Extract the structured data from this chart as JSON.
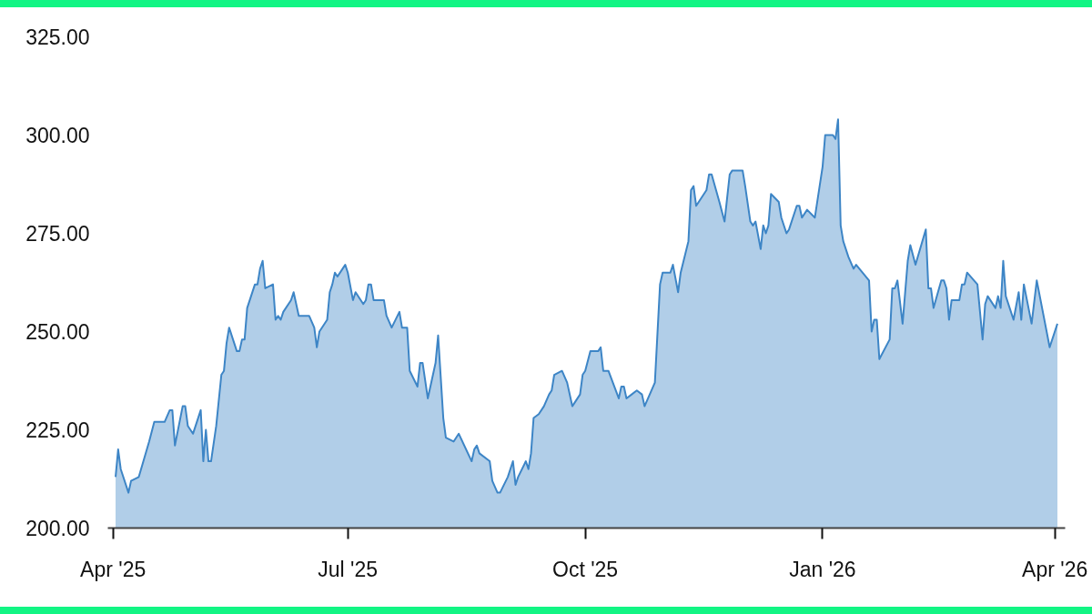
{
  "chart_data": {
    "type": "area",
    "x": [
      "2025-04-02",
      "2025-04-03",
      "2025-04-04",
      "2025-04-07",
      "2025-04-08",
      "2025-04-11",
      "2025-04-15",
      "2025-04-17",
      "2025-04-21",
      "2025-04-23",
      "2025-04-24",
      "2025-04-25",
      "2025-04-28",
      "2025-04-29",
      "2025-04-30",
      "2025-05-02",
      "2025-05-05",
      "2025-05-06",
      "2025-05-07",
      "2025-05-08",
      "2025-05-09",
      "2025-05-11",
      "2025-05-13",
      "2025-05-14",
      "2025-05-15",
      "2025-05-16",
      "2025-05-19",
      "2025-05-20",
      "2025-05-21",
      "2025-05-22",
      "2025-05-23",
      "2025-05-26",
      "2025-05-27",
      "2025-05-28",
      "2025-05-29",
      "2025-05-30",
      "2025-06-02",
      "2025-06-03",
      "2025-06-04",
      "2025-06-05",
      "2025-06-06",
      "2025-06-09",
      "2025-06-10",
      "2025-06-12",
      "2025-06-16",
      "2025-06-18",
      "2025-06-19",
      "2025-06-20",
      "2025-06-23",
      "2025-06-24",
      "2025-06-25",
      "2025-06-26",
      "2025-06-27",
      "2025-06-29",
      "2025-06-30",
      "2025-07-01",
      "2025-07-03",
      "2025-07-04",
      "2025-07-07",
      "2025-07-08",
      "2025-07-09",
      "2025-07-10",
      "2025-07-11",
      "2025-07-15",
      "2025-07-16",
      "2025-07-18",
      "2025-07-21",
      "2025-07-22",
      "2025-07-24",
      "2025-07-25",
      "2025-07-28",
      "2025-07-29",
      "2025-07-30",
      "2025-08-01",
      "2025-08-04",
      "2025-08-05",
      "2025-08-07",
      "2025-08-08",
      "2025-08-11",
      "2025-08-13",
      "2025-08-18",
      "2025-08-19",
      "2025-08-20",
      "2025-08-21",
      "2025-08-25",
      "2025-08-26",
      "2025-08-28",
      "2025-08-29",
      "2025-09-01",
      "2025-09-03",
      "2025-09-04",
      "2025-09-05",
      "2025-09-08",
      "2025-09-09",
      "2025-09-10",
      "2025-09-11",
      "2025-09-13",
      "2025-09-15",
      "2025-09-17",
      "2025-09-18",
      "2025-09-19",
      "2025-09-22",
      "2025-09-24",
      "2025-09-26",
      "2025-09-29",
      "2025-09-30",
      "2025-10-01",
      "2025-10-03",
      "2025-10-06",
      "2025-10-07",
      "2025-10-08",
      "2025-10-10",
      "2025-10-14",
      "2025-10-15",
      "2025-10-16",
      "2025-10-17",
      "2025-10-19",
      "2025-10-21",
      "2025-10-23",
      "2025-10-24",
      "2025-10-28",
      "2025-10-30",
      "2025-10-31",
      "2025-11-03",
      "2025-11-04",
      "2025-11-06",
      "2025-11-07",
      "2025-11-10",
      "2025-11-11",
      "2025-11-12",
      "2025-11-13",
      "2025-11-14",
      "2025-11-17",
      "2025-11-18",
      "2025-11-19",
      "2025-11-22",
      "2025-11-24",
      "2025-11-26",
      "2025-11-27",
      "2025-11-29",
      "2025-12-01",
      "2025-12-02",
      "2025-12-04",
      "2025-12-05",
      "2025-12-06",
      "2025-12-08",
      "2025-12-09",
      "2025-12-10",
      "2025-12-11",
      "2025-12-12",
      "2025-12-15",
      "2025-12-16",
      "2025-12-18",
      "2025-12-19",
      "2025-12-22",
      "2025-12-23",
      "2025-12-24",
      "2025-12-26",
      "2025-12-29",
      "2026-01-01",
      "2026-01-02",
      "2026-01-05",
      "2026-01-06",
      "2026-01-07",
      "2026-01-08",
      "2026-01-09",
      "2026-01-11",
      "2026-01-13",
      "2026-01-14",
      "2026-01-19",
      "2026-01-20",
      "2026-01-21",
      "2026-01-22",
      "2026-01-23",
      "2026-01-27",
      "2026-01-28",
      "2026-01-29",
      "2026-01-30",
      "2026-02-01",
      "2026-02-03",
      "2026-02-04",
      "2026-02-06",
      "2026-02-10",
      "2026-02-11",
      "2026-02-12",
      "2026-02-13",
      "2026-02-16",
      "2026-02-17",
      "2026-02-18",
      "2026-02-19",
      "2026-02-20",
      "2026-02-23",
      "2026-02-24",
      "2026-02-25",
      "2026-02-26",
      "2026-03-02",
      "2026-03-04",
      "2026-03-05",
      "2026-03-06",
      "2026-03-09",
      "2026-03-10",
      "2026-03-11",
      "2026-03-12",
      "2026-03-13",
      "2026-03-16",
      "2026-03-18",
      "2026-03-19",
      "2026-03-20",
      "2026-03-23",
      "2026-03-25",
      "2026-03-30",
      "2026-04-02"
    ],
    "series": [
      {
        "color": "#3d85c6",
        "values": [
          213,
          220,
          215,
          209,
          212,
          213,
          222,
          227,
          227,
          230,
          230,
          221,
          231,
          231,
          226,
          224,
          230,
          217,
          225,
          217,
          217,
          226,
          239,
          240,
          247,
          251,
          245,
          245,
          248,
          248,
          256,
          262,
          262,
          266,
          268,
          261,
          262,
          253,
          254,
          253,
          255,
          258,
          260,
          254,
          254,
          251,
          246,
          250,
          253,
          260,
          262,
          265,
          264,
          266,
          267,
          265,
          258,
          260,
          257,
          258,
          262,
          262,
          258,
          258,
          254,
          251,
          255,
          251,
          251,
          240,
          236,
          242,
          242,
          233,
          242,
          249,
          228,
          223,
          222,
          224,
          217,
          220,
          221,
          219,
          217,
          212,
          209,
          209,
          213,
          217,
          211,
          213,
          217,
          215,
          219,
          228,
          229,
          231,
          234,
          235,
          239,
          240,
          237,
          231,
          234,
          239,
          240,
          245,
          245,
          246,
          240,
          240,
          233,
          236,
          236,
          233,
          234,
          235,
          234,
          231,
          237,
          262,
          265,
          265,
          267,
          260,
          265,
          273,
          286,
          287,
          282,
          283,
          286,
          290,
          290,
          283,
          278,
          290,
          291,
          291,
          291,
          287,
          278,
          277,
          278,
          271,
          277,
          275,
          277,
          285,
          283,
          279,
          275,
          276,
          282,
          282,
          279,
          281,
          279,
          292,
          300,
          300,
          299,
          304,
          277,
          273,
          269,
          266,
          267,
          263,
          250,
          253,
          253,
          243,
          248,
          261,
          261,
          263,
          252,
          268,
          272,
          267,
          276,
          261,
          261,
          256,
          263,
          263,
          261,
          253,
          258,
          258,
          262,
          262,
          265,
          262,
          248,
          257,
          259,
          256,
          259,
          256,
          268,
          259,
          253,
          260,
          253,
          262,
          252,
          263,
          246,
          252
        ]
      }
    ],
    "xlim": [
      "2025-03-30",
      "2026-04-05"
    ],
    "xticks": [
      {
        "value": "2025-04-01",
        "label": "Apr '25"
      },
      {
        "value": "2025-07-01",
        "label": "Jul '25"
      },
      {
        "value": "2025-10-01",
        "label": "Oct '25"
      },
      {
        "value": "2026-01-01",
        "label": "Jan '26"
      },
      {
        "value": "2026-04-01",
        "label": "Apr '26"
      }
    ],
    "ylim": [
      200,
      325
    ],
    "yticks": [
      {
        "value": 200,
        "label": "200.00"
      },
      {
        "value": 225,
        "label": "225.00"
      },
      {
        "value": 250,
        "label": "250.00"
      },
      {
        "value": 275,
        "label": "275.00"
      },
      {
        "value": 300,
        "label": "300.00"
      },
      {
        "value": 325,
        "label": "325.00"
      }
    ]
  }
}
